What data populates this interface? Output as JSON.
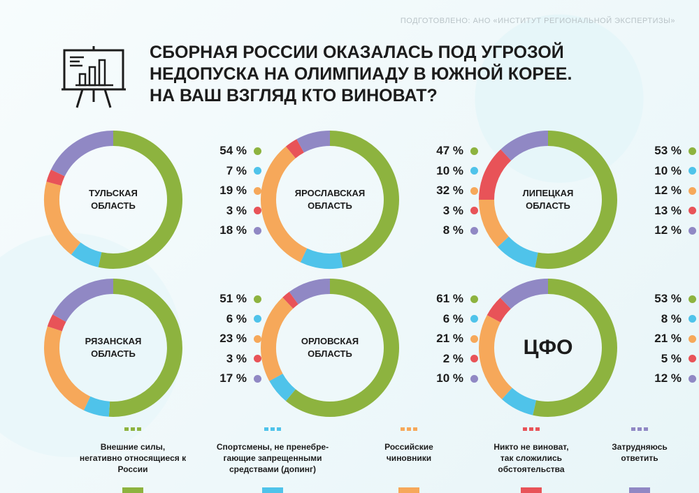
{
  "credit": "ПОДГОТОВЛЕНО: АНО «ИНСТИТУТ РЕГИОНАЛЬНОЙ ЭКСПЕРТИЗЫ»",
  "title_lines": [
    "СБОРНАЯ РОССИИ ОКАЗАЛАСЬ ПОД УГРОЗОЙ",
    "НЕДОПУСКА НА ОЛИМПИАДУ В ЮЖНОЙ КОРЕЕ.",
    "НА ВАШ ВЗГЛЯД КТО ВИНОВАТ?"
  ],
  "icon": "presentation-board-chart-icon",
  "colors": {
    "green": "#8db33f",
    "blue": "#4fc3ea",
    "orange": "#f6a85a",
    "red": "#e85358",
    "purple": "#9088c4",
    "track": "#e9edee"
  },
  "legend": [
    {
      "text": "Внешние силы,\nнегативно относящиеся к\nРоссии",
      "color": "#8db33f"
    },
    {
      "text": "Спортсмены, не пренебре-\nгающие запрещенными\nсредствами (допинг)",
      "color": "#4fc3ea"
    },
    {
      "text": "Российские\nчиновники",
      "color": "#f6a85a"
    },
    {
      "text": "Никто не виноват,\nтак сложились\nобстоятельства",
      "color": "#e85358"
    },
    {
      "text": "Затрудняюсь\nответить",
      "color": "#9088c4"
    }
  ],
  "chart_data": [
    {
      "type": "pie",
      "region_lines": [
        "ТУЛЬСКАЯ",
        "ОБЛАСТЬ"
      ],
      "values": [
        54,
        7,
        19,
        3,
        18
      ],
      "labels": [
        "54 %",
        "7 %",
        "19 %",
        "3 %",
        "18 %"
      ]
    },
    {
      "type": "pie",
      "region_lines": [
        "ЯРОСЛАВСКАЯ",
        "ОБЛАСТЬ"
      ],
      "values": [
        47,
        10,
        32,
        3,
        8
      ],
      "labels": [
        "47 %",
        "10 %",
        "32 %",
        "3 %",
        "8 %"
      ]
    },
    {
      "type": "pie",
      "region_lines": [
        "ЛИПЕЦКАЯ",
        "ОБЛАСТЬ"
      ],
      "values": [
        53,
        10,
        12,
        13,
        12
      ],
      "labels": [
        "53 %",
        "10 %",
        "12 %",
        "13 %",
        "12 %"
      ]
    },
    {
      "type": "pie",
      "region_lines": [
        "РЯЗАНСКАЯ",
        "ОБЛАСТЬ"
      ],
      "values": [
        51,
        6,
        23,
        3,
        17
      ],
      "labels": [
        "51 %",
        "6 %",
        "23 %",
        "3 %",
        "17 %"
      ]
    },
    {
      "type": "pie",
      "region_lines": [
        "ОРЛОВСКАЯ",
        "ОБЛАСТЬ"
      ],
      "values": [
        61,
        6,
        21,
        2,
        10
      ],
      "labels": [
        "61 %",
        "6 %",
        "21 %",
        "2 %",
        "10 %"
      ]
    },
    {
      "type": "pie",
      "region_lines": [
        "ЦФО"
      ],
      "values": [
        53,
        8,
        21,
        5,
        12
      ],
      "labels": [
        "53 %",
        "8 %",
        "21 %",
        "5 %",
        "12 %"
      ]
    }
  ]
}
